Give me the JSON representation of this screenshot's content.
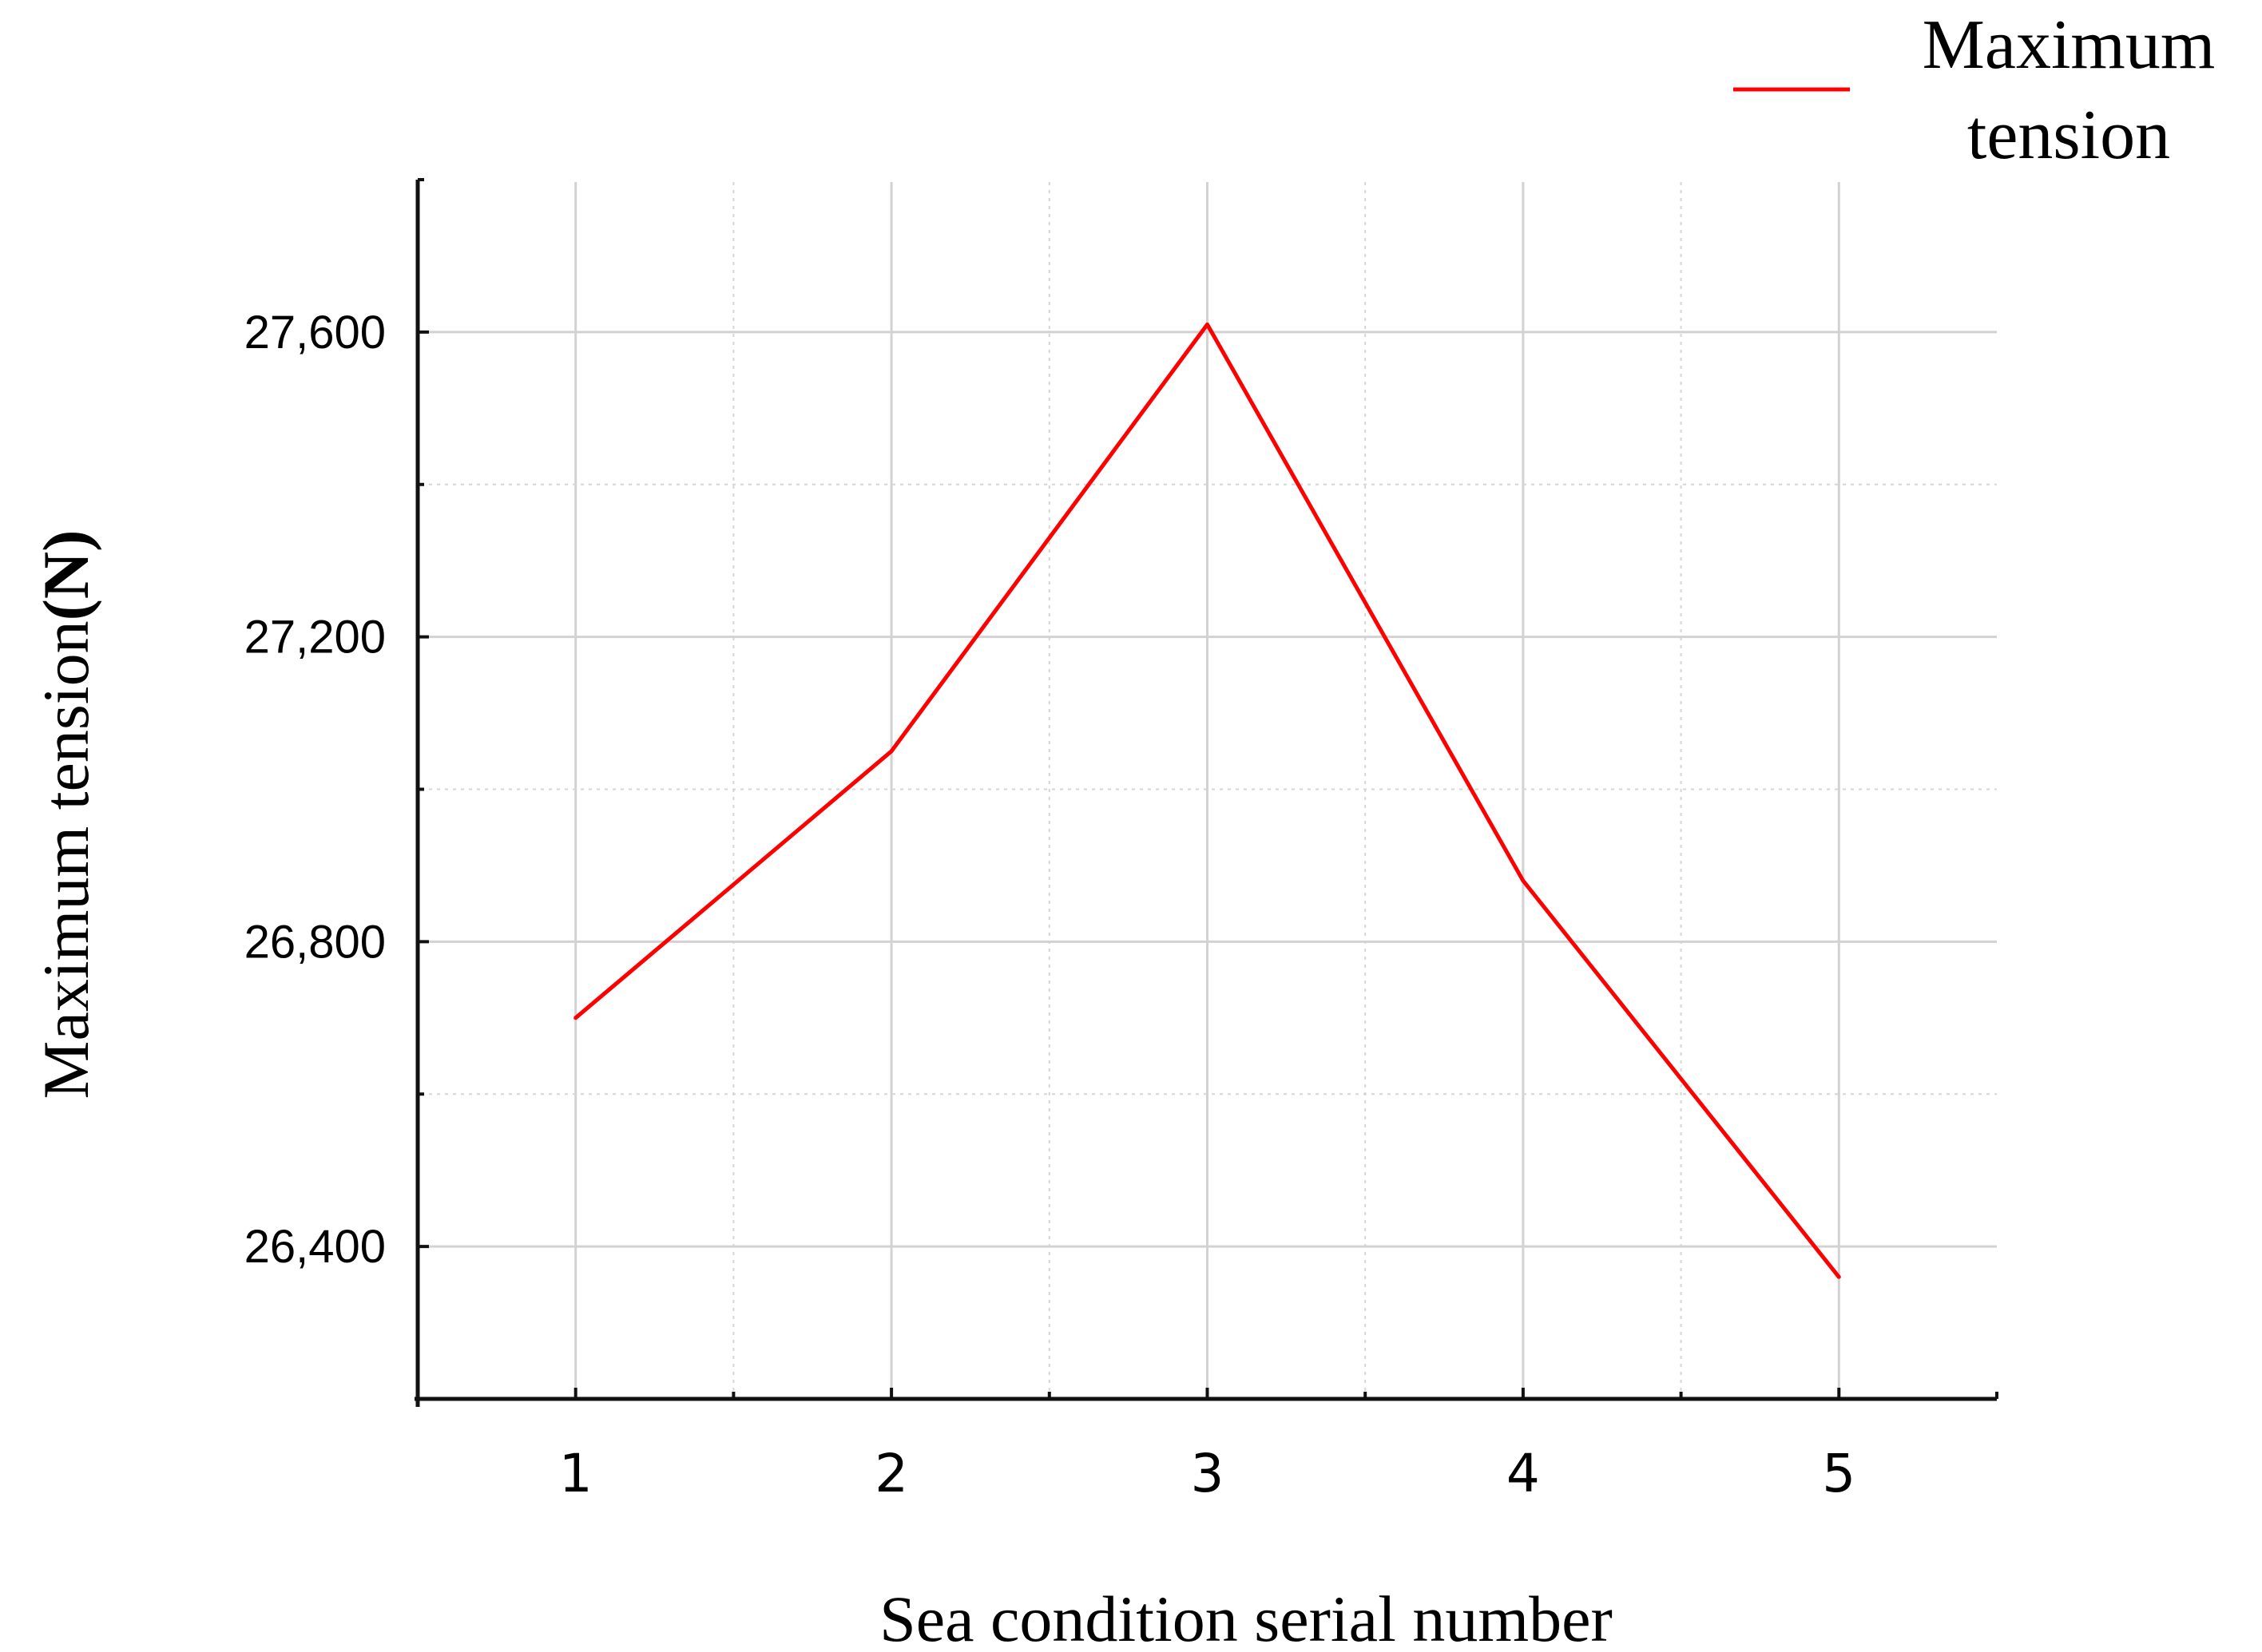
{
  "chart_data": {
    "type": "line",
    "title": "",
    "xlabel": "Sea condition serial number",
    "ylabel_main": "Maximum tension",
    "ylabel_unit": "(N)",
    "x": [
      1,
      2,
      3,
      4,
      5
    ],
    "x_tick_labels": [
      "1",
      "2",
      "3",
      "4",
      "5"
    ],
    "y_ticks": [
      26400,
      26800,
      27200,
      27600
    ],
    "y_tick_labels": [
      "26,400",
      "26,800",
      "27,200",
      "27,600"
    ],
    "xlim": [
      0.5,
      5.5
    ],
    "ylim": [
      26200,
      27800
    ],
    "grid": true,
    "legend_position": "top-right",
    "series": [
      {
        "name": "Maximum tension",
        "color": "#ff0000",
        "values": [
          26700,
          27050,
          27610,
          26880,
          26360
        ]
      }
    ]
  },
  "legend": {
    "line1": "Maximum",
    "line2": "tension"
  }
}
